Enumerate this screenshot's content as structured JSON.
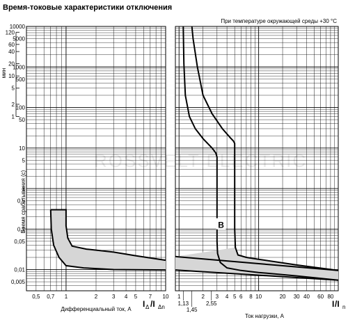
{
  "title": "Время-токовые характеристики отключения",
  "watermark": "ROSSVELT ELECTRIC",
  "chart_data": [
    {
      "type": "area",
      "panel": "differential",
      "xlabel": "Дифференциальный ток, А",
      "xlabel_symbol": "I",
      "xlabel_sub": "Δ",
      "xlabel_tail": "/I",
      "xlabel_sub2": "Δn",
      "ylabel": "Время срабатывания (с)",
      "ylabel_alt": "мин",
      "x_scale": "log",
      "xlim": [
        0.4,
        10
      ],
      "y_scale": "log",
      "ylim": [
        0.003,
        10000
      ],
      "x_ticks": [
        {
          "v": 0.5,
          "t": "0,5"
        },
        {
          "v": 0.7,
          "t": "0,7"
        },
        {
          "v": 1,
          "t": "1"
        },
        {
          "v": 2,
          "t": "2"
        },
        {
          "v": 3,
          "t": "3"
        },
        {
          "v": 4,
          "t": "4"
        },
        {
          "v": 5,
          "t": "5"
        },
        {
          "v": 7,
          "t": "7"
        },
        {
          "v": 10,
          "t": "10"
        }
      ],
      "y_ticks_sec": [
        {
          "v": 10000,
          "t": "10000"
        },
        {
          "v": 5000,
          "t": "5000"
        },
        {
          "v": 1000,
          "t": "1000"
        },
        {
          "v": 500,
          "t": "500"
        },
        {
          "v": 100,
          "t": "100"
        },
        {
          "v": 50,
          "t": "50"
        },
        {
          "v": 10,
          "t": "10"
        },
        {
          "v": 5,
          "t": "5"
        },
        {
          "v": 1,
          "t": "1"
        },
        {
          "v": 0.5,
          "t": "0,5"
        },
        {
          "v": 0.1,
          "t": "0,1"
        },
        {
          "v": 0.05,
          "t": "0,05"
        },
        {
          "v": 0.01,
          "t": "0,01"
        },
        {
          "v": 0.005,
          "t": "0,005"
        }
      ],
      "y_ticks_min": [
        {
          "v": 7200,
          "t": "120"
        },
        {
          "v": 3600,
          "t": "60"
        },
        {
          "v": 2400,
          "t": "40"
        },
        {
          "v": 1200,
          "t": "20"
        },
        {
          "v": 600,
          "t": "10"
        },
        {
          "v": 300,
          "t": "5"
        },
        {
          "v": 120,
          "t": "2"
        },
        {
          "v": 60,
          "t": "1"
        }
      ],
      "series": [
        {
          "role": "upper",
          "x": [
            0.7,
            1.0,
            1.0,
            1.04,
            1.15,
            1.6,
            3,
            5,
            10
          ],
          "y": [
            0.3,
            0.3,
            0.12,
            0.06,
            0.038,
            0.032,
            0.027,
            0.022,
            0.017
          ]
        },
        {
          "role": "lower",
          "x": [
            0.7,
            0.71,
            0.75,
            0.85,
            1.0,
            1.5,
            3,
            10
          ],
          "y": [
            0.3,
            0.1,
            0.04,
            0.02,
            0.0125,
            0.011,
            0.01,
            0.0098
          ]
        }
      ]
    },
    {
      "type": "line",
      "panel": "overload",
      "annotation": "При температуре окружающей среды +30 °С",
      "curve_label": "B",
      "xlabel": "Ток нагрузки, А",
      "xlabel_symbol": "I",
      "xlabel_tail": "/I",
      "xlabel_sub2": "n",
      "x_scale": "log",
      "xlim": [
        0.9,
        100
      ],
      "y_scale": "log",
      "ylim": [
        0.003,
        10000
      ],
      "x_ticks": [
        {
          "v": 1,
          "t": "1"
        },
        {
          "v": 2,
          "t": "2"
        },
        {
          "v": 3,
          "t": "3"
        },
        {
          "v": 4,
          "t": "4"
        },
        {
          "v": 5,
          "t": "5"
        },
        {
          "v": 6,
          "t": "6"
        },
        {
          "v": 8,
          "t": "8"
        },
        {
          "v": 10,
          "t": "10"
        },
        {
          "v": 20,
          "t": "20"
        },
        {
          "v": 30,
          "t": "30"
        },
        {
          "v": 40,
          "t": "40"
        },
        {
          "v": 60,
          "t": "60"
        },
        {
          "v": 80,
          "t": "80"
        }
      ],
      "x_extra_ticks": [
        {
          "v": 1.13,
          "t": "1,13"
        },
        {
          "v": 1.45,
          "t": "1,45"
        },
        {
          "v": 2.55,
          "t": "2,55"
        }
      ],
      "series": [
        {
          "role": "lower-curve",
          "x": [
            1.13,
            1.15,
            1.2,
            1.35,
            1.6,
            2.0,
            2.6,
            2.9,
            3.0,
            3.0,
            3.05,
            3.3,
            4.0,
            6,
            10,
            30,
            100
          ],
          "y": [
            10000,
            1200,
            200,
            60,
            30,
            17,
            10,
            7.5,
            6,
            0.05,
            0.025,
            0.015,
            0.011,
            0.0095,
            0.0085,
            0.007,
            0.0055
          ]
        },
        {
          "role": "upper-curve",
          "x": [
            1.45,
            1.5,
            1.7,
            2.0,
            2.6,
            3.5,
            4.4,
            4.8,
            5.0,
            5.0,
            5.1,
            5.5,
            7,
            10,
            30,
            100
          ],
          "y": [
            10000,
            5000,
            1000,
            200,
            70,
            30,
            18,
            15,
            13,
            0.1,
            0.035,
            0.023,
            0.02,
            0.018,
            0.013,
            0.0095
          ]
        }
      ]
    }
  ]
}
